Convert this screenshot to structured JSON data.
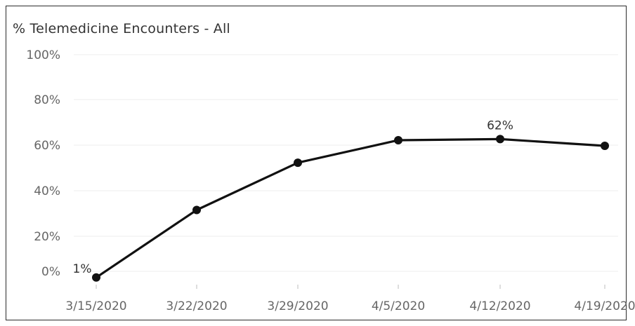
{
  "chart_data": {
    "type": "line",
    "title": "% Telemedicine Encounters - All",
    "xlabel": "",
    "ylabel": "",
    "categories": [
      "3/15/2020",
      "3/22/2020",
      "3/29/2020",
      "4/5/2020",
      "4/12/2020",
      "4/19/2020"
    ],
    "series": [
      {
        "values": [
          1,
          31,
          52,
          62,
          62.5,
          59.5
        ]
      }
    ],
    "y_ticks": [
      "0%",
      "20%",
      "40%",
      "60%",
      "80%",
      "100%"
    ],
    "y_tick_values": [
      0,
      20,
      40,
      60,
      80,
      100
    ],
    "ylim": [
      0,
      100
    ],
    "data_labels": [
      {
        "index": 0,
        "text": "1%"
      },
      {
        "index": 4,
        "text": "62%"
      }
    ],
    "grid": true,
    "legend": "none",
    "colors": {
      "line": "#111111",
      "grid": "#ececec",
      "tick_text": "#666666"
    }
  }
}
